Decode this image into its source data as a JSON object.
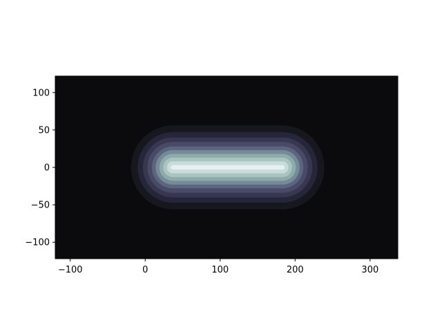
{
  "chart_data": {
    "type": "heatmap",
    "title": "",
    "xlabel": "",
    "ylabel": "",
    "xlim": [
      -120,
      337
    ],
    "ylim": [
      -122,
      122
    ],
    "xticks": [
      -100,
      0,
      100,
      200,
      300
    ],
    "yticks": [
      -100,
      -50,
      0,
      50,
      100
    ],
    "xtick_labels": [
      "−100",
      "0",
      "100",
      "200",
      "300"
    ],
    "ytick_labels": [
      "−100",
      "−50",
      "0",
      "50",
      "100"
    ],
    "colormap": "bone",
    "background_color": "#0b0b0d",
    "field": {
      "shape": "stadium",
      "segment_start": [
        37,
        0
      ],
      "segment_end": [
        183,
        0
      ],
      "levels": [
        {
          "distance": 56,
          "color": "#17171f"
        },
        {
          "distance": 47,
          "color": "#26263a"
        },
        {
          "distance": 40,
          "color": "#373752"
        },
        {
          "distance": 34,
          "color": "#494b66"
        },
        {
          "distance": 28,
          "color": "#5c6580"
        },
        {
          "distance": 23,
          "color": "#738c97"
        },
        {
          "distance": 18,
          "color": "#8faaa8"
        },
        {
          "distance": 13,
          "color": "#aac4c2"
        },
        {
          "distance": 8,
          "color": "#c8dcdc"
        },
        {
          "distance": 3,
          "color": "#e6f0f0"
        }
      ]
    }
  }
}
